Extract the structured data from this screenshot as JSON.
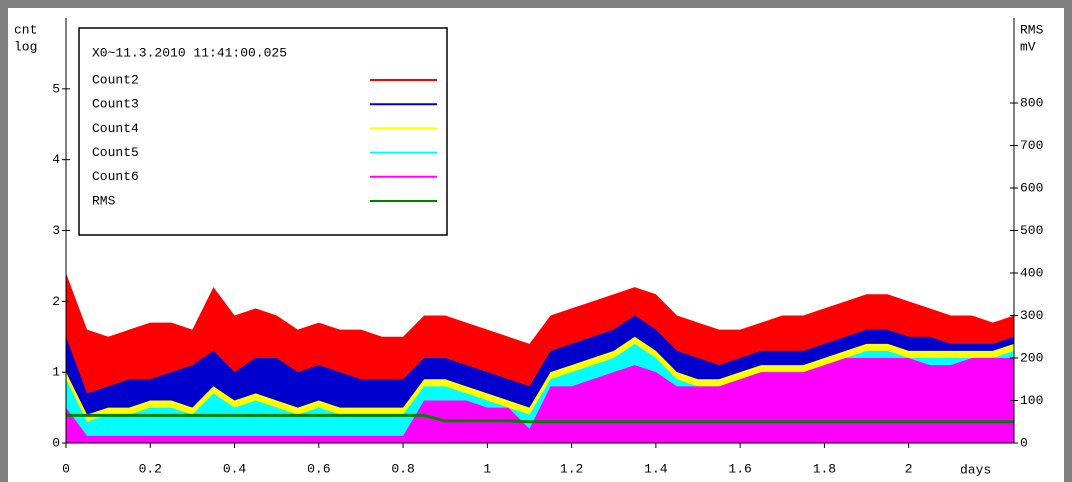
{
  "chart_data": {
    "type": "area",
    "legend_title": "X0~11.3.2010 11:41:00.025",
    "x_label": "days",
    "y_label": [
      "cnt",
      "log"
    ],
    "y2_label": [
      "RMS",
      "mV"
    ],
    "x": [
      0,
      0.05,
      0.1,
      0.15,
      0.2,
      0.25,
      0.3,
      0.35,
      0.4,
      0.45,
      0.5,
      0.55,
      0.6,
      0.65,
      0.7,
      0.75,
      0.8,
      0.85,
      0.9,
      0.95,
      1,
      1.05,
      1.1,
      1.15,
      1.2,
      1.25,
      1.3,
      1.35,
      1.4,
      1.45,
      1.5,
      1.55,
      1.6,
      1.65,
      1.7,
      1.75,
      1.8,
      1.85,
      1.9,
      1.95,
      2,
      2.05,
      2.1,
      2.15,
      2.2,
      2.25
    ],
    "series": [
      {
        "name": "Count2",
        "color": "#ff0000",
        "values": [
          2.4,
          1.6,
          1.5,
          1.6,
          1.7,
          1.7,
          1.6,
          2.2,
          1.8,
          1.9,
          1.8,
          1.6,
          1.7,
          1.6,
          1.6,
          1.5,
          1.5,
          1.8,
          1.8,
          1.7,
          1.6,
          1.5,
          1.4,
          1.8,
          1.9,
          2.0,
          2.1,
          2.2,
          2.1,
          1.8,
          1.7,
          1.6,
          1.6,
          1.7,
          1.8,
          1.8,
          1.9,
          2.0,
          2.1,
          2.1,
          2.0,
          1.9,
          1.8,
          1.8,
          1.7,
          1.8
        ]
      },
      {
        "name": "Count3",
        "color": "#0000cc",
        "values": [
          1.5,
          0.7,
          0.8,
          0.9,
          0.9,
          1.0,
          1.1,
          1.3,
          1.0,
          1.2,
          1.2,
          1.0,
          1.1,
          1.0,
          0.9,
          0.9,
          0.9,
          1.2,
          1.2,
          1.1,
          1.0,
          0.9,
          0.8,
          1.3,
          1.4,
          1.5,
          1.6,
          1.8,
          1.6,
          1.3,
          1.2,
          1.1,
          1.2,
          1.3,
          1.3,
          1.3,
          1.4,
          1.5,
          1.6,
          1.6,
          1.5,
          1.5,
          1.4,
          1.4,
          1.4,
          1.5
        ]
      },
      {
        "name": "Count4",
        "color": "#ffff00",
        "values": [
          1.0,
          0.4,
          0.5,
          0.5,
          0.6,
          0.6,
          0.5,
          0.8,
          0.6,
          0.7,
          0.6,
          0.5,
          0.6,
          0.5,
          0.5,
          0.5,
          0.5,
          0.9,
          0.9,
          0.8,
          0.7,
          0.6,
          0.5,
          1.0,
          1.1,
          1.2,
          1.3,
          1.5,
          1.3,
          1.0,
          0.9,
          0.9,
          1.0,
          1.1,
          1.1,
          1.1,
          1.2,
          1.3,
          1.4,
          1.4,
          1.3,
          1.3,
          1.3,
          1.3,
          1.3,
          1.4
        ]
      },
      {
        "name": "Count5",
        "color": "#00ffff",
        "values": [
          0.9,
          0.3,
          0.4,
          0.4,
          0.5,
          0.5,
          0.4,
          0.7,
          0.5,
          0.6,
          0.5,
          0.4,
          0.5,
          0.4,
          0.4,
          0.4,
          0.4,
          0.8,
          0.8,
          0.7,
          0.6,
          0.5,
          0.4,
          0.9,
          1.0,
          1.1,
          1.2,
          1.4,
          1.2,
          0.9,
          0.8,
          0.8,
          0.9,
          1.0,
          1.0,
          1.0,
          1.1,
          1.2,
          1.3,
          1.3,
          1.2,
          1.2,
          1.2,
          1.2,
          1.2,
          1.3
        ]
      },
      {
        "name": "Count6",
        "color": "#ff00ff",
        "values": [
          0.5,
          0.1,
          0.1,
          0.1,
          0.1,
          0.1,
          0.1,
          0.1,
          0.1,
          0.1,
          0.1,
          0.1,
          0.1,
          0.1,
          0.1,
          0.1,
          0.1,
          0.6,
          0.6,
          0.6,
          0.5,
          0.5,
          0.2,
          0.8,
          0.8,
          0.9,
          1.0,
          1.1,
          1.0,
          0.8,
          0.8,
          0.8,
          0.9,
          1.0,
          1.0,
          1.0,
          1.1,
          1.2,
          1.2,
          1.2,
          1.2,
          1.1,
          1.1,
          1.2,
          1.2,
          1.2
        ]
      },
      {
        "name": "RMS",
        "color": "#008000",
        "axis": "y2",
        "values": [
          65,
          65,
          65,
          65,
          65,
          65,
          65,
          65,
          65,
          65,
          65,
          65,
          65,
          65,
          65,
          65,
          65,
          65,
          52,
          52,
          52,
          52,
          50,
          50,
          50,
          50,
          50,
          50,
          50,
          50,
          50,
          50,
          50,
          50,
          50,
          50,
          50,
          50,
          50,
          50,
          50,
          50,
          50,
          50,
          50,
          50
        ]
      }
    ],
    "xlim": [
      0,
      2.25
    ],
    "ylim": [
      0,
      6
    ],
    "y2lim": [
      0,
      1000
    ],
    "xticks": [
      0,
      0.2,
      0.4,
      0.6,
      0.8,
      1,
      1.2,
      1.4,
      1.6,
      1.8,
      2
    ],
    "yticks": [
      0,
      1,
      2,
      3,
      4,
      5
    ],
    "y2ticks": [
      0,
      100,
      200,
      300,
      400,
      500,
      600,
      700,
      800
    ]
  }
}
